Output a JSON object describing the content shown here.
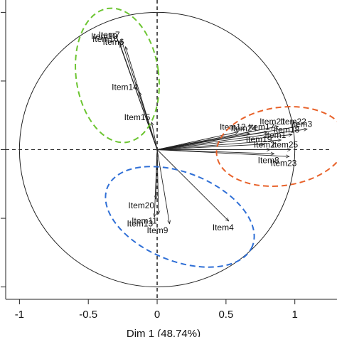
{
  "chart_data": {
    "type": "vector",
    "x_label": "Dim 1 (48.74%)",
    "xlim": [
      -1.1,
      1.27
    ],
    "ylim": [
      -1.09,
      1.09
    ],
    "xticks": [
      -1.0,
      -0.5,
      0.0,
      0.5,
      1.0
    ],
    "yticks": [
      -1.0,
      -0.5,
      0.0,
      0.5,
      1.0
    ],
    "color": "#222222",
    "labels": [
      "Item10",
      "Item7",
      "Item16",
      "Item6",
      "Item14",
      "Item15",
      "Item20",
      "Item13",
      "Item11",
      "Item9",
      "Item4",
      "Item21",
      "Item22",
      "Item3",
      "Item17",
      "Item18",
      "Item12",
      "Item24",
      "Item1",
      "Item19",
      "Item25",
      "Item2",
      "Item8",
      "Item23"
    ],
    "x": [
      -0.28,
      -0.26,
      -0.27,
      -0.23,
      -0.13,
      -0.04,
      -0.01,
      -0.02,
      0.01,
      0.09,
      0.52,
      0.88,
      1.03,
      1.09,
      0.8,
      0.98,
      0.59,
      0.67,
      0.9,
      0.78,
      0.97,
      0.82,
      0.85,
      0.96
    ],
    "y": [
      0.79,
      0.8,
      0.77,
      0.75,
      0.42,
      0.2,
      -0.36,
      -0.49,
      -0.47,
      -0.54,
      -0.52,
      0.17,
      0.17,
      0.15,
      0.13,
      0.11,
      0.13,
      0.12,
      0.07,
      0.04,
      0.0,
      0.0,
      -0.03,
      -0.05
    ]
  }
}
